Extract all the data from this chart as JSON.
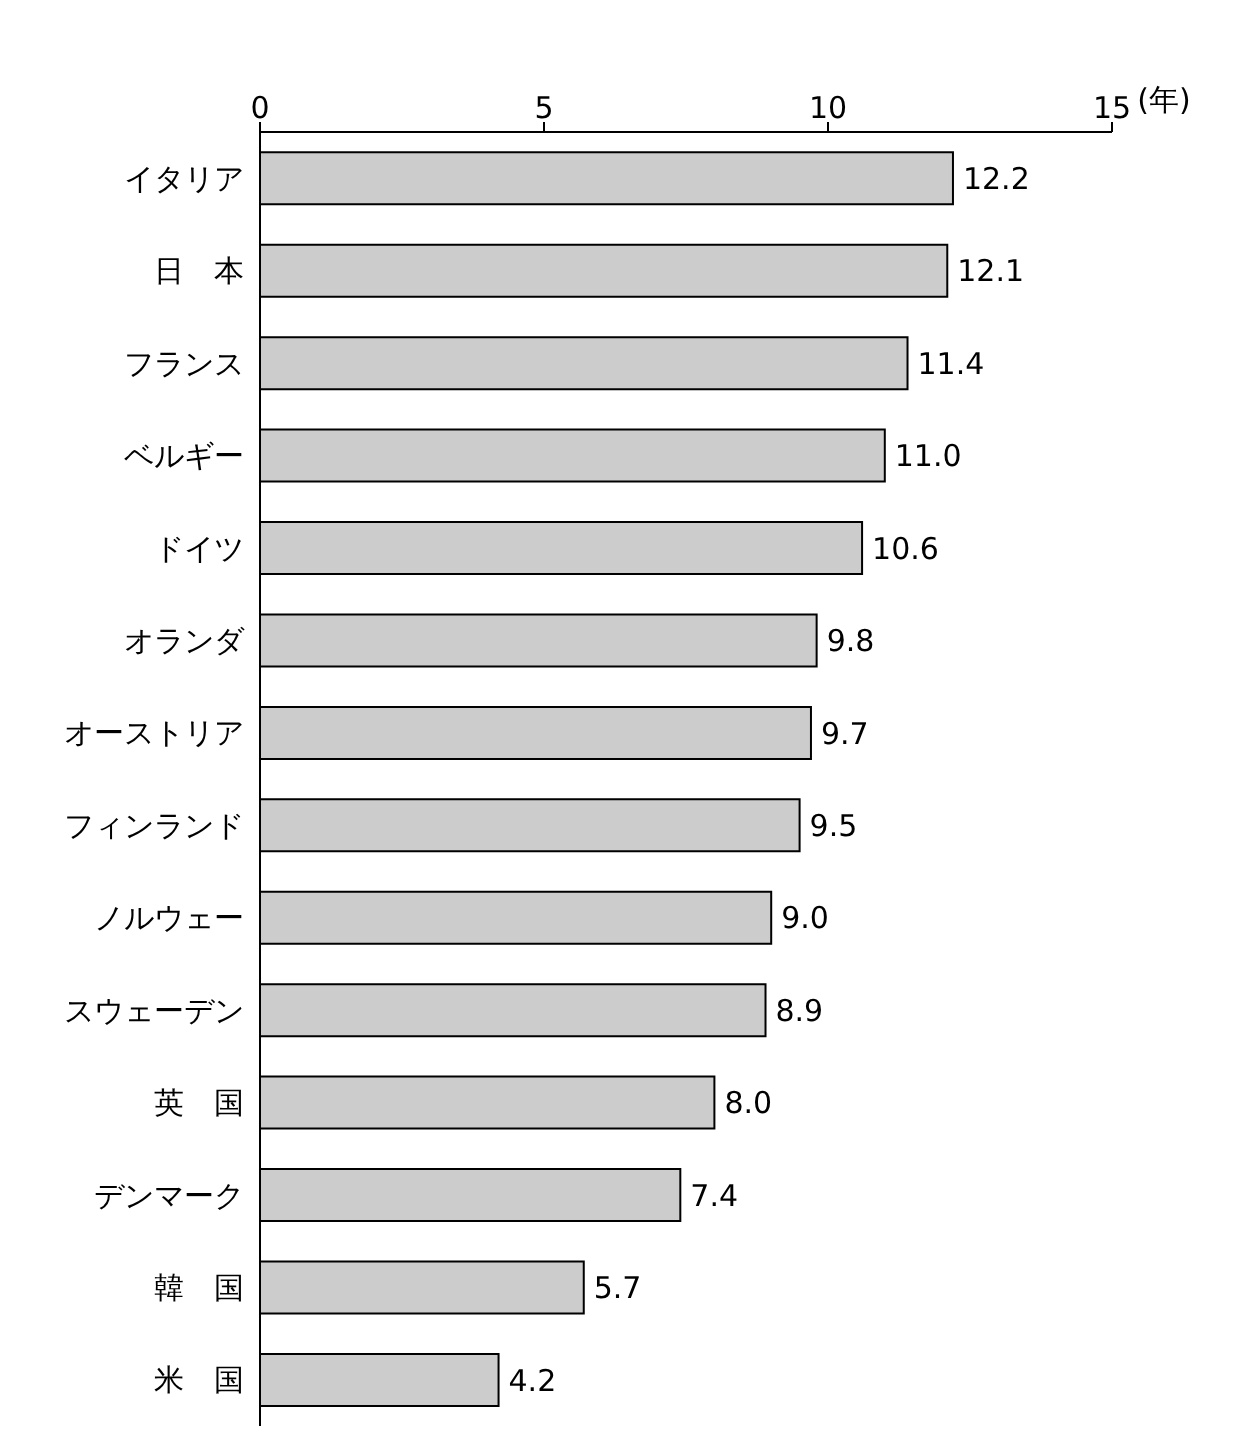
{
  "chart_data": {
    "type": "bar",
    "orientation": "horizontal",
    "xlabel": "(年)",
    "categories": [
      "イタリア",
      "日　本",
      "フランス",
      "ベルギー",
      "ドイツ",
      "オランダ",
      "オーストリア",
      "フィンランド",
      "ノルウェー",
      "スウェーデン",
      "英　国",
      "デンマーク",
      "韓　国",
      "米　国"
    ],
    "values": [
      12.2,
      12.1,
      11.4,
      11.0,
      10.6,
      9.8,
      9.7,
      9.5,
      9.0,
      8.9,
      8.0,
      7.4,
      5.7,
      4.2
    ],
    "value_labels": [
      "12.2",
      "12.1",
      "11.4",
      "11.0",
      "10.6",
      "9.8",
      "9.7",
      "9.5",
      "9.0",
      "8.9",
      "8.0",
      "7.4",
      "5.7",
      "4.2"
    ],
    "color": "#cccccc",
    "xlim": [
      0,
      15
    ],
    "xticks": [
      0,
      5,
      10,
      15
    ],
    "grid": false
  }
}
